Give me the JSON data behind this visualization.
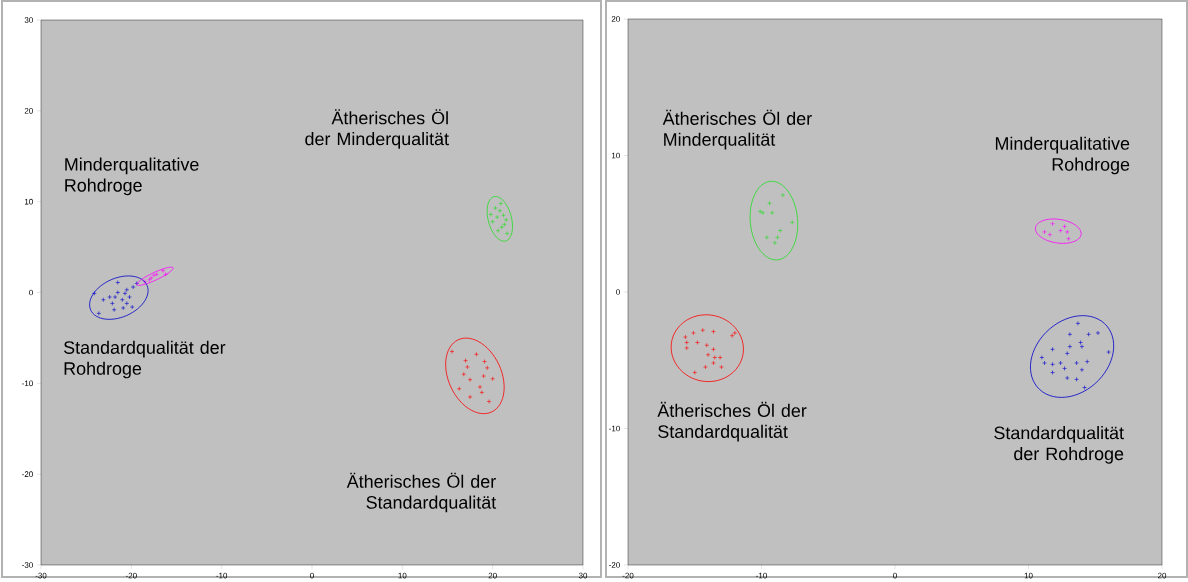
{
  "chart_data": [
    {
      "type": "scatter",
      "xlim": [
        -30,
        30
      ],
      "ylim": [
        -30,
        30
      ],
      "xticks": [
        -30,
        -20,
        -10,
        0,
        10,
        20,
        30
      ],
      "yticks": [
        -30,
        -20,
        -10,
        0,
        10,
        20,
        30
      ],
      "marker": "cross",
      "series": [
        {
          "color": "#0000cc",
          "x": [
            -24.1,
            -23.6,
            -23.1,
            -22.1,
            -21.8,
            -21.5,
            -21.0,
            -20.7,
            -20.5,
            -20.2,
            -19.9,
            -20.9,
            -21.5,
            -19.8,
            -19.4,
            -21.9,
            -22.4,
            -20.5
          ],
          "values": [
            -0.1,
            -2.3,
            -0.8,
            -1.2,
            -0.5,
            0,
            -0.8,
            -0.1,
            -1.2,
            -0.5,
            -1.6,
            -1.7,
            1.1,
            0.6,
            1.0,
            -1.9,
            -0.5,
            0.3
          ]
        },
        {
          "color": "#ff00ff",
          "x": [
            -18.5,
            -17.8,
            -17.2,
            -16.5,
            -16.2,
            -17.5,
            -18.0
          ],
          "values": [
            1.2,
            1.6,
            2.0,
            2.4,
            2.0,
            1.9,
            1.4
          ]
        },
        {
          "color": "#22dd22",
          "x": [
            20.3,
            20.8,
            21.2,
            20.5,
            21.5,
            20.0,
            21.0,
            20.6,
            21.6,
            20.9,
            19.8,
            21.3
          ],
          "values": [
            9.3,
            9.0,
            8.5,
            8.3,
            8.0,
            7.8,
            7.2,
            6.8,
            6.5,
            9.8,
            8.6,
            7.5
          ]
        },
        {
          "color": "#ff0000",
          "x": [
            15.5,
            17.0,
            17.2,
            16.8,
            19.1,
            19.4,
            19.0,
            18.6,
            18.8,
            17.5,
            16.3,
            20.0,
            18.2,
            17.5,
            19.6
          ],
          "values": [
            -6.5,
            -7.5,
            -8.2,
            -9.0,
            -7.6,
            -8.3,
            -9.2,
            -10.4,
            -11.0,
            -11.5,
            -10.6,
            -9.5,
            -6.8,
            -9.6,
            -12.0
          ]
        }
      ],
      "annotations": [
        "Ätherisches Öl der Minderqualität",
        "Minderqualitative Rohdroge",
        "Standardqualität der Rohdroge",
        "Ätherisches Öl der Standardqualität"
      ]
    },
    {
      "type": "scatter",
      "xlim": [
        -20,
        20
      ],
      "ylim": [
        -20,
        20
      ],
      "xticks": [
        -20,
        -10,
        0,
        10,
        20
      ],
      "yticks": [
        -20,
        -10,
        0,
        10,
        20
      ],
      "marker": "cross",
      "series": [
        {
          "color": "#22dd22",
          "x": [
            -9.4,
            -9.9,
            -9.2,
            -8.4,
            -7.7,
            -8.6,
            -8.8,
            -9.6,
            -10.1,
            -9.0
          ],
          "values": [
            6.5,
            5.8,
            5.8,
            7.1,
            5.1,
            4.5,
            4.0,
            4.0,
            5.9,
            3.6
          ]
        },
        {
          "color": "#ff00ff",
          "x": [
            11.2,
            11.8,
            12.4,
            12.9,
            13.0,
            11.6,
            12.7
          ],
          "values": [
            4.4,
            5.0,
            4.5,
            4.4,
            3.9,
            4.2,
            4.8
          ]
        },
        {
          "color": "#ff0000",
          "x": [
            -15.7,
            -15.6,
            -15.1,
            -14.4,
            -13.6,
            -14.8,
            -15.6,
            -14.1,
            -13.6,
            -14.0,
            -13.5,
            -13.1,
            -13.6,
            -14.2,
            -13.0,
            -15.0,
            -12.2,
            -12.0
          ],
          "values": [
            -3.3,
            -3.7,
            -3.0,
            -2.8,
            -2.9,
            -3.7,
            -4.1,
            -3.9,
            -4.2,
            -4.6,
            -4.8,
            -4.8,
            -5.2,
            -5.5,
            -5.5,
            -5.9,
            -3.2,
            -3.0
          ]
        },
        {
          "color": "#0000cc",
          "x": [
            13.7,
            13.1,
            14.5,
            15.2,
            13.9,
            14.0,
            13.1,
            11.8,
            12.9,
            16.0,
            11.0,
            11.2,
            11.8,
            12.4,
            12.7,
            13.6,
            14.4,
            14.0,
            11.8,
            12.9,
            13.6,
            14.2
          ],
          "values": [
            -2.3,
            -3.1,
            -3.1,
            -3.0,
            -3.7,
            -4.0,
            -4.0,
            -4.2,
            -4.5,
            -4.4,
            -4.8,
            -5.2,
            -5.3,
            -5.2,
            -5.6,
            -5.2,
            -5.1,
            -5.7,
            -5.9,
            -6.3,
            -6.4,
            -7.0
          ]
        }
      ],
      "annotations": [
        "Ätherisches Öl der Minderqualität",
        "Minderqualitative Rohdroge",
        "Ätherisches Öl der Standardqualität",
        "Standardqualität der Rohdroge"
      ]
    }
  ]
}
